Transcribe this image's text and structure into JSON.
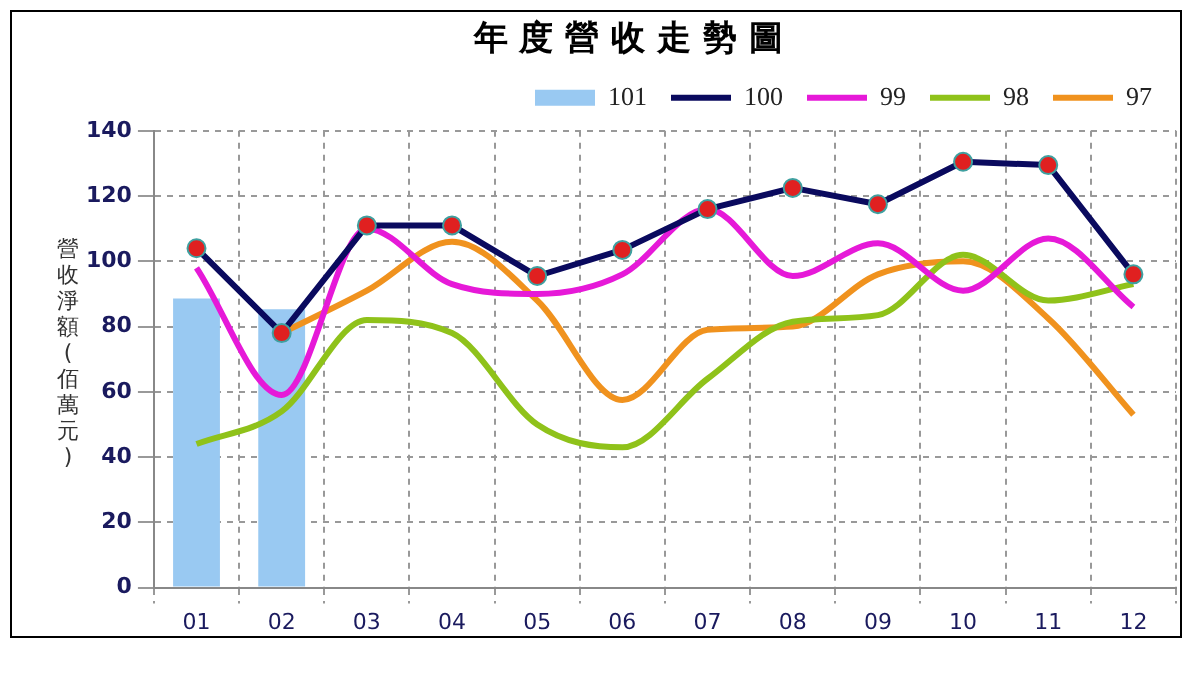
{
  "chart_data": {
    "type": "line",
    "title": "年度營收走勢圖",
    "ylabel": "營收淨額(佰萬元)",
    "categories": [
      "01",
      "02",
      "03",
      "04",
      "05",
      "06",
      "07",
      "08",
      "09",
      "10",
      "11",
      "12"
    ],
    "series": [
      {
        "name": "101",
        "type": "bar",
        "color": "#99c9f2",
        "values": [
          88.6,
          85.3,
          null,
          null,
          null,
          null,
          null,
          null,
          null,
          null,
          null,
          null
        ]
      },
      {
        "name": "100",
        "color": "#0a0a5e",
        "marker": "circle",
        "values": [
          104,
          78,
          111,
          111,
          95.5,
          103.5,
          116,
          122.5,
          117.5,
          130.5,
          129.5,
          96
        ]
      },
      {
        "name": "99",
        "color": "#e619d8",
        "marker": "none",
        "values": [
          98,
          59,
          110,
          93,
          90,
          96,
          116,
          95.5,
          105.5,
          91,
          107,
          86
        ]
      },
      {
        "name": "98",
        "color": "#8fc21a",
        "marker": "none",
        "values": [
          44,
          54,
          82,
          78,
          50,
          43,
          64,
          81.5,
          83.5,
          102,
          88,
          93
        ]
      },
      {
        "name": "97",
        "color": "#f0921e",
        "marker": "none",
        "values": [
          null,
          78,
          91,
          106,
          88,
          57.5,
          79,
          80,
          96,
          100,
          82.5,
          53
        ]
      }
    ],
    "ylim": [
      0,
      140
    ],
    "yticks": [
      0,
      20,
      40,
      60,
      80,
      100,
      120,
      140
    ],
    "grid": true,
    "legend": "top",
    "line_style": "solid"
  }
}
